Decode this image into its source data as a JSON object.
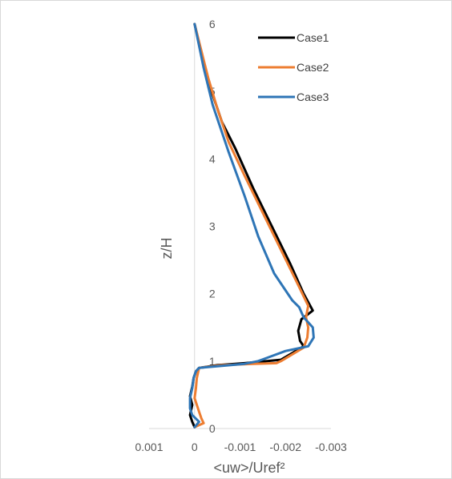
{
  "chart_data": {
    "type": "line",
    "xlabel": "<uw>/Uref²",
    "ylabel": "z/H",
    "xlim": [
      0.001,
      -0.003
    ],
    "ylim": [
      0,
      6
    ],
    "x_ticks": [
      "0.001",
      "0",
      "-0.001",
      "-0.002",
      "-0.003"
    ],
    "y_ticks": [
      "0",
      "1",
      "2",
      "3",
      "4",
      "5",
      "6"
    ],
    "x_tick_values": [
      0.001,
      0,
      -0.001,
      -0.002,
      -0.003
    ],
    "y_tick_values": [
      0,
      1,
      2,
      3,
      4,
      5,
      6
    ],
    "grid": false,
    "legend_position": "top-right",
    "series": [
      {
        "name": "Case1",
        "color": "#000000",
        "points": [
          [
            0,
            0.02
          ],
          [
            5e-05,
            0.1
          ],
          [
            0.0001,
            0.2
          ],
          [
            5e-05,
            0.35
          ],
          [
            0.0001,
            0.48
          ],
          [
            5e-05,
            0.62
          ],
          [
            2e-05,
            0.75
          ],
          [
            -3e-05,
            0.85
          ],
          [
            -0.0001,
            0.9
          ],
          [
            -0.0005,
            0.94
          ],
          [
            -0.0011,
            0.97
          ],
          [
            -0.0016,
            1.0
          ],
          [
            -0.0019,
            1.02
          ],
          [
            -0.0021,
            1.1
          ],
          [
            -0.0024,
            1.22
          ],
          [
            -0.00232,
            1.3
          ],
          [
            -0.00228,
            1.45
          ],
          [
            -0.00235,
            1.62
          ],
          [
            -0.0026,
            1.75
          ],
          [
            -0.0024,
            2.0
          ],
          [
            -0.0021,
            2.45
          ],
          [
            -0.0017,
            3.0
          ],
          [
            -0.0013,
            3.55
          ],
          [
            -0.0009,
            4.15
          ],
          [
            -0.0006,
            4.55
          ],
          [
            -0.0003,
            5.15
          ],
          [
            0,
            6.0
          ]
        ]
      },
      {
        "name": "Case2",
        "color": "#ED7D31",
        "points": [
          [
            0,
            0.02
          ],
          [
            -0.0002,
            0.08
          ],
          [
            -0.00015,
            0.15
          ],
          [
            -0.0001,
            0.25
          ],
          [
            -5e-05,
            0.35
          ],
          [
            0,
            0.45
          ],
          [
            -3e-05,
            0.6
          ],
          [
            -5e-05,
            0.75
          ],
          [
            -0.0001,
            0.9
          ],
          [
            -0.0006,
            0.94
          ],
          [
            -0.0013,
            0.96
          ],
          [
            -0.0018,
            0.97
          ],
          [
            -0.0019,
            1.0
          ],
          [
            -0.0021,
            1.08
          ],
          [
            -0.0024,
            1.2
          ],
          [
            -0.00248,
            1.35
          ],
          [
            -0.0025,
            1.5
          ],
          [
            -0.00245,
            1.65
          ],
          [
            -0.0025,
            1.82
          ],
          [
            -0.0023,
            2.1
          ],
          [
            -0.0019,
            2.65
          ],
          [
            -0.0015,
            3.2
          ],
          [
            -0.0011,
            3.75
          ],
          [
            -0.00075,
            4.25
          ],
          [
            -0.0005,
            4.75
          ],
          [
            -0.0003,
            5.2
          ],
          [
            0,
            6.0
          ]
        ]
      },
      {
        "name": "Case3",
        "color": "#2E75B6",
        "points": [
          [
            0,
            0.02
          ],
          [
            -0.0001,
            0.1
          ],
          [
            5e-05,
            0.2
          ],
          [
            0.0001,
            0.3
          ],
          [
            0.0001,
            0.45
          ],
          [
            5e-05,
            0.6
          ],
          [
            2e-05,
            0.75
          ],
          [
            -3e-05,
            0.85
          ],
          [
            -0.0001,
            0.9
          ],
          [
            -0.0006,
            0.93
          ],
          [
            -0.0011,
            0.96
          ],
          [
            -0.0014,
            1.0
          ],
          [
            -0.0016,
            1.05
          ],
          [
            -0.002,
            1.15
          ],
          [
            -0.0025,
            1.22
          ],
          [
            -0.00262,
            1.35
          ],
          [
            -0.0026,
            1.5
          ],
          [
            -0.0024,
            1.65
          ],
          [
            -0.0023,
            1.8
          ],
          [
            -0.00215,
            1.9
          ],
          [
            -0.00175,
            2.3
          ],
          [
            -0.0014,
            2.85
          ],
          [
            -0.0011,
            3.45
          ],
          [
            -0.00075,
            4.1
          ],
          [
            -0.0004,
            4.8
          ],
          [
            -0.0002,
            5.35
          ],
          [
            0,
            6.0
          ]
        ]
      }
    ]
  }
}
